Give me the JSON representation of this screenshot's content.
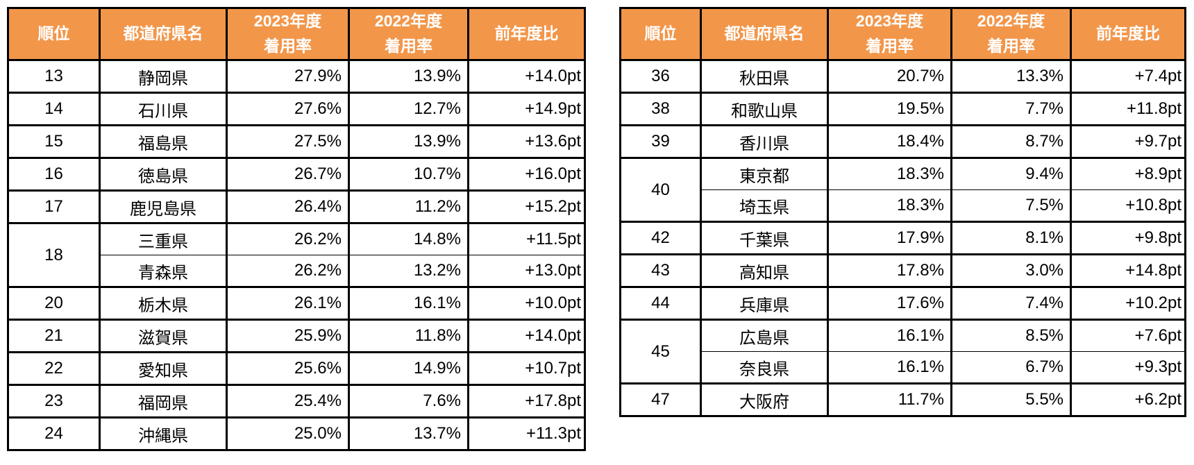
{
  "colors": {
    "header_bg": "#F2964A",
    "header_text": "#FFFFFF",
    "border": "#000000",
    "cell_bg": "#FFFFFF"
  },
  "header": {
    "rank": "順位",
    "prefecture": "都道府県名",
    "rate2023_line1": "2023年度",
    "rate2023_line2": "着用率",
    "rate2022_line1": "2022年度",
    "rate2022_line2": "着用率",
    "yoy": "前年度比"
  },
  "tables": [
    {
      "name": "ranking-table-left",
      "groups": [
        {
          "rank": "13",
          "entries": [
            {
              "prefecture": "静岡県",
              "rate2023": "27.9%",
              "rate2022": "13.9%",
              "yoy": "+14.0pt"
            }
          ]
        },
        {
          "rank": "14",
          "entries": [
            {
              "prefecture": "石川県",
              "rate2023": "27.6%",
              "rate2022": "12.7%",
              "yoy": "+14.9pt"
            }
          ]
        },
        {
          "rank": "15",
          "entries": [
            {
              "prefecture": "福島県",
              "rate2023": "27.5%",
              "rate2022": "13.9%",
              "yoy": "+13.6pt"
            }
          ]
        },
        {
          "rank": "16",
          "entries": [
            {
              "prefecture": "徳島県",
              "rate2023": "26.7%",
              "rate2022": "10.7%",
              "yoy": "+16.0pt"
            }
          ]
        },
        {
          "rank": "17",
          "entries": [
            {
              "prefecture": "鹿児島県",
              "rate2023": "26.4%",
              "rate2022": "11.2%",
              "yoy": "+15.2pt"
            }
          ]
        },
        {
          "rank": "18",
          "entries": [
            {
              "prefecture": "三重県",
              "rate2023": "26.2%",
              "rate2022": "14.8%",
              "yoy": "+11.5pt"
            },
            {
              "prefecture": "青森県",
              "rate2023": "26.2%",
              "rate2022": "13.2%",
              "yoy": "+13.0pt"
            }
          ]
        },
        {
          "rank": "20",
          "entries": [
            {
              "prefecture": "栃木県",
              "rate2023": "26.1%",
              "rate2022": "16.1%",
              "yoy": "+10.0pt"
            }
          ]
        },
        {
          "rank": "21",
          "entries": [
            {
              "prefecture": "滋賀県",
              "rate2023": "25.9%",
              "rate2022": "11.8%",
              "yoy": "+14.0pt"
            }
          ]
        },
        {
          "rank": "22",
          "entries": [
            {
              "prefecture": "愛知県",
              "rate2023": "25.6%",
              "rate2022": "14.9%",
              "yoy": "+10.7pt"
            }
          ]
        },
        {
          "rank": "23",
          "entries": [
            {
              "prefecture": "福岡県",
              "rate2023": "25.4%",
              "rate2022": "7.6%",
              "yoy": "+17.8pt"
            }
          ]
        },
        {
          "rank": "24",
          "entries": [
            {
              "prefecture": "沖縄県",
              "rate2023": "25.0%",
              "rate2022": "13.7%",
              "yoy": "+11.3pt"
            }
          ]
        }
      ]
    },
    {
      "name": "ranking-table-right",
      "groups": [
        {
          "rank": "36",
          "entries": [
            {
              "prefecture": "秋田県",
              "rate2023": "20.7%",
              "rate2022": "13.3%",
              "yoy": "+7.4pt"
            }
          ]
        },
        {
          "rank": "38",
          "entries": [
            {
              "prefecture": "和歌山県",
              "rate2023": "19.5%",
              "rate2022": "7.7%",
              "yoy": "+11.8pt"
            }
          ]
        },
        {
          "rank": "39",
          "entries": [
            {
              "prefecture": "香川県",
              "rate2023": "18.4%",
              "rate2022": "8.7%",
              "yoy": "+9.7pt"
            }
          ]
        },
        {
          "rank": "40",
          "entries": [
            {
              "prefecture": "東京都",
              "rate2023": "18.3%",
              "rate2022": "9.4%",
              "yoy": "+8.9pt"
            },
            {
              "prefecture": "埼玉県",
              "rate2023": "18.3%",
              "rate2022": "7.5%",
              "yoy": "+10.8pt"
            }
          ]
        },
        {
          "rank": "42",
          "entries": [
            {
              "prefecture": "千葉県",
              "rate2023": "17.9%",
              "rate2022": "8.1%",
              "yoy": "+9.8pt"
            }
          ]
        },
        {
          "rank": "43",
          "entries": [
            {
              "prefecture": "高知県",
              "rate2023": "17.8%",
              "rate2022": "3.0%",
              "yoy": "+14.8pt"
            }
          ]
        },
        {
          "rank": "44",
          "entries": [
            {
              "prefecture": "兵庫県",
              "rate2023": "17.6%",
              "rate2022": "7.4%",
              "yoy": "+10.2pt"
            }
          ]
        },
        {
          "rank": "45",
          "entries": [
            {
              "prefecture": "広島県",
              "rate2023": "16.1%",
              "rate2022": "8.5%",
              "yoy": "+7.6pt"
            },
            {
              "prefecture": "奈良県",
              "rate2023": "16.1%",
              "rate2022": "6.7%",
              "yoy": "+9.3pt"
            }
          ]
        },
        {
          "rank": "47",
          "entries": [
            {
              "prefecture": "大阪府",
              "rate2023": "11.7%",
              "rate2022": "5.5%",
              "yoy": "+6.2pt"
            }
          ]
        }
      ]
    }
  ]
}
